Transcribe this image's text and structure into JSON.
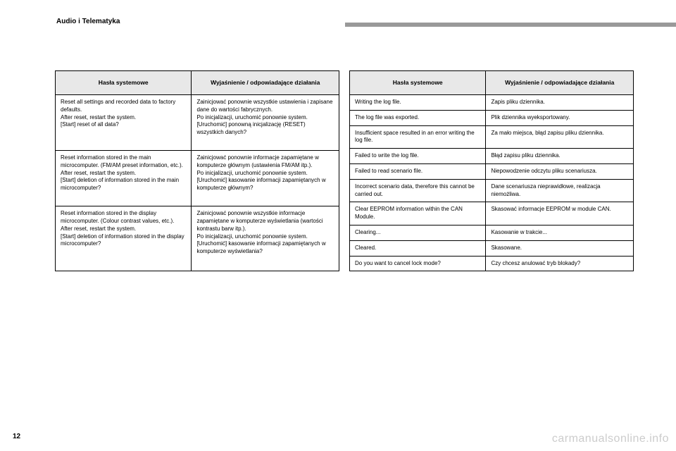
{
  "section_title": "Audio i Telematyka",
  "page_number": "12",
  "watermark": "carmanualsonline.info",
  "headers": {
    "col1": "Hasła systemowe",
    "col2": "Wyjaśnienie / odpowiadające działania"
  },
  "left_table": [
    {
      "c1": "Reset all settings and recorded data to factory defaults.\nAfter reset, restart the system.\n[Start] reset of all data?",
      "c2": "Zainicjować ponownie wszystkie ustawienia i zapisane dane do wartości fabrycznych.\nPo inicjalizacji, uruchomić ponownie system.\n[Uruchomić] ponowną inicjalizację (RESET) wszystkich danych?"
    },
    {
      "c1": "Reset information stored in the main microcomputer. (FM/AM preset information, etc.).\nAfter reset, restart the system.\n[Start] deletion of information stored in the main microcomputer?",
      "c2": "Zainicjować ponownie informacje zapamiętane w komputerze głównym (ustawienia FM/AM itp.).\nPo inicjalizacji, uruchomić ponownie system.\n[Uruchomić] kasowanie informacji zapamiętanych w komputerze głównym?"
    },
    {
      "c1": "Reset information stored in the display microcomputer. (Colour contrast values, etc.).\nAfter reset, restart the system.\n[Start] deletion of information stored in the display microcomputer?",
      "c2": "Zainicjować ponownie wszystkie informacje zapamiętane w komputerze wyświetlania (wartości kontrastu barw itp.).\nPo inicjalizacji, uruchomić ponownie system.\n[Uruchomić] kasowanie informacji zapamiętanych w komputerze wyświetlania?"
    }
  ],
  "right_table": [
    {
      "c1": "Writing the log file.",
      "c2": "Zapis pliku dziennika."
    },
    {
      "c1": "The log file was exported.",
      "c2": "Plik dziennika wyeksportowany."
    },
    {
      "c1": "Insufficient space resulted in an error writing the log file.",
      "c2": "Za mało miejsca, błąd zapisu pliku dziennika."
    },
    {
      "c1": "Failed to write the log file.",
      "c2": "Błąd zapisu pliku dziennika."
    },
    {
      "c1": "Failed to read scenario file.",
      "c2": "Niepowodzenie odczytu pliku scenariusza."
    },
    {
      "c1": "Incorrect scenario data, therefore this cannot be carried out.",
      "c2": "Dane scenariusza nieprawidłowe, realizacja niemożliwa."
    },
    {
      "c1": "Clear EEPROM information within the CAN Module.",
      "c2": "Skasować informacje EEPROM w module CAN."
    },
    {
      "c1": "Clearing...",
      "c2": "Kasowanie w trakcie..."
    },
    {
      "c1": "Cleared.",
      "c2": "Skasowane."
    },
    {
      "c1": "Do you want to cancel lock mode?",
      "c2": "Czy chcesz anulować tryb blokady?"
    }
  ]
}
